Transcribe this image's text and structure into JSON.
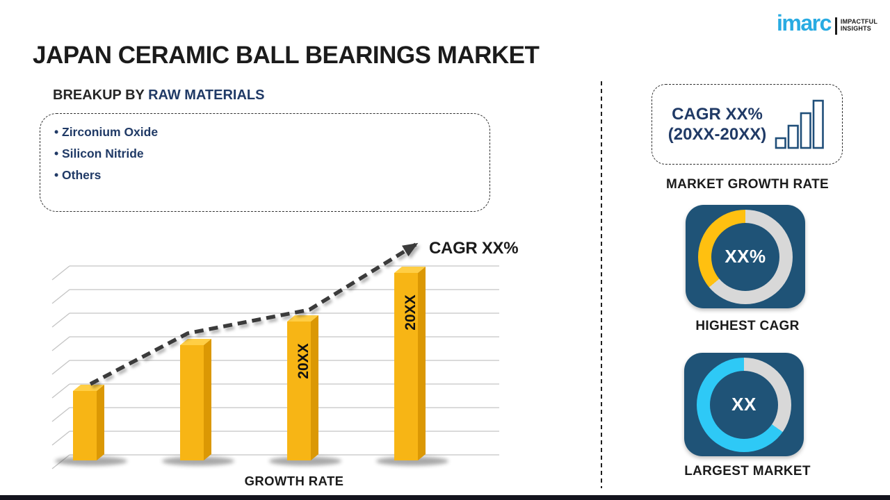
{
  "page": {
    "title": "JAPAN CERAMIC BALL BEARINGS MARKET",
    "footer_bar_color": "#14141e"
  },
  "logo": {
    "wordmark": "imarc",
    "wordmark_color": "#29ABE2",
    "tagline_line1": "IMPACTFUL",
    "tagline_line2": "INSIGHTS"
  },
  "breakup": {
    "heading_prefix": "BREAKUP BY ",
    "heading_highlight": "RAW MATERIALS",
    "highlight_color": "#203A66",
    "items": [
      "Zirconium Oxide",
      "Silicon Nitride",
      "Others"
    ]
  },
  "chart_data": {
    "type": "bar",
    "title": "",
    "xlabel": "GROWTH RATE",
    "ylabel": "",
    "value_axis": "unlabeled",
    "grid": true,
    "bar_labels": [
      "",
      "",
      "20XX",
      "20XX"
    ],
    "values": [
      100,
      166,
      200,
      270
    ],
    "trend_line": {
      "style": "dashed-arrow",
      "label": "CAGR XX%"
    },
    "colors": {
      "bar_front": "#F7B515",
      "bar_top": "#FFCE45",
      "bar_side": "#DB9804",
      "trend": "#3a3a3a",
      "gridline": "#c4c4c4",
      "label_text": "#111111",
      "axis_text": "#1b1b1b"
    }
  },
  "sidebar": {
    "navy_text_color": "#203A66",
    "tile_bg_color": "#1F5377",
    "cagr_box": {
      "line1": "CAGR XX%",
      "line2": "(20XX-20XX)",
      "icon_stroke": "#1F4E79"
    },
    "market_growth_caption": "MARKET GROWTH RATE",
    "highest_cagr": {
      "value": "XX%",
      "label": "HIGHEST CAGR",
      "accent_color": "#FFC010",
      "ring_color": "#D8D8D8",
      "ring_end_deg": 230
    },
    "largest_market": {
      "value": "XX",
      "label": "LARGEST MARKET",
      "accent_color": "#2EC9F6",
      "ring_color": "#D8D8D8",
      "ring_end_deg": 125
    }
  }
}
